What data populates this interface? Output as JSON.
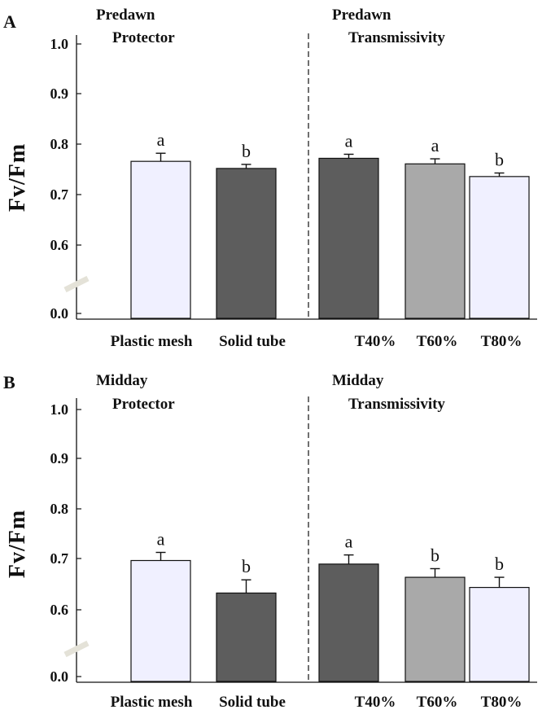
{
  "chart_data": [
    {
      "type": "bar",
      "panel_label": "A",
      "ylabel": "Fv/Fm",
      "ylim": [
        0.5,
        1.0
      ],
      "yticks": [
        "0.0",
        "0.6",
        "0.7",
        "0.8",
        "0.9",
        "1.0"
      ],
      "axis_break": true,
      "groups": [
        {
          "line1": "Predawn",
          "line2": "Protector",
          "categories": [
            "Plastic mesh",
            "Solid tube"
          ]
        },
        {
          "line1": "Predawn",
          "line2": "Transmissivity",
          "categories": [
            "T40%",
            "T60%",
            "T80%"
          ]
        }
      ],
      "categories": [
        "Plastic mesh",
        "Solid tube",
        "T40%",
        "T60%",
        "T80%"
      ],
      "values": [
        0.81,
        0.796,
        0.816,
        0.805,
        0.78
      ],
      "errors": [
        0.016,
        0.008,
        0.008,
        0.01,
        0.007
      ],
      "significance": [
        "a",
        "b",
        "a",
        "a",
        "b"
      ],
      "colors": [
        "#f0f0ff",
        "#5d5d5d",
        "#5d5d5d",
        "#a9a9a9",
        "#f0f0ff"
      ]
    },
    {
      "type": "bar",
      "panel_label": "B",
      "ylabel": "Fv/Fm",
      "ylim": [
        0.5,
        1.0
      ],
      "yticks": [
        "0.0",
        "0.6",
        "0.7",
        "0.8",
        "0.9",
        "1.0"
      ],
      "axis_break": true,
      "groups": [
        {
          "line1": "Midday",
          "line2": "Protector",
          "categories": [
            "Plastic mesh",
            "Solid tube"
          ]
        },
        {
          "line1": "Midday",
          "line2": "Transmissivity",
          "categories": [
            "T40%",
            "T60%",
            "T80%"
          ]
        }
      ],
      "categories": [
        "Plastic mesh",
        "Solid tube",
        "T40%",
        "T60%",
        "T80%"
      ],
      "values": [
        0.738,
        0.674,
        0.731,
        0.705,
        0.685
      ],
      "errors": [
        0.016,
        0.026,
        0.018,
        0.017,
        0.02
      ],
      "significance": [
        "a",
        "b",
        "a",
        "b",
        "b"
      ],
      "colors": [
        "#f0f0ff",
        "#5d5d5d",
        "#5d5d5d",
        "#a9a9a9",
        "#f0f0ff"
      ]
    }
  ]
}
